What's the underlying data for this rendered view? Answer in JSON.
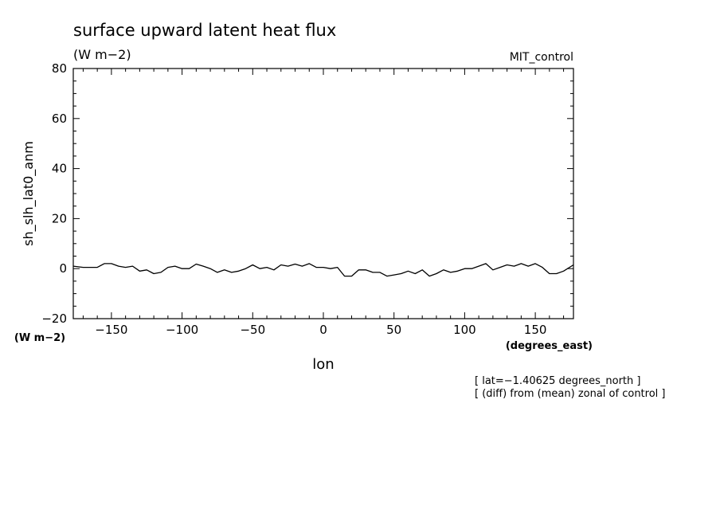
{
  "chart_data": {
    "type": "line",
    "title": "surface upward latent heat flux",
    "title_units": "(W m−2)",
    "run_label": "MIT_control",
    "ylabel": "sh_slh_lat0_anm",
    "ylabel_units": "(W m−2)",
    "xlabel": "lon",
    "xlabel_units": "(degrees_east)",
    "notes": [
      "[ lat=−1.40625 degrees_north ]",
      "[ (diff) from (mean) zonal of control ]"
    ],
    "xlim": [
      -177,
      177
    ],
    "ylim": [
      -20,
      80
    ],
    "xticks": [
      -150,
      -100,
      -50,
      0,
      50,
      100,
      150
    ],
    "xtick_labels": [
      "−150",
      "−100",
      "−50",
      "0",
      "50",
      "100",
      "150"
    ],
    "yticks": [
      -20,
      0,
      20,
      40,
      60,
      80
    ],
    "ytick_labels": [
      "−20",
      "0",
      "20",
      "40",
      "60",
      "80"
    ],
    "x_minor_step": 10,
    "y_minor_step": 5,
    "grid": false,
    "line_color": "#000000",
    "series": [
      {
        "x": [
          -177,
          -170,
          -165,
          -160,
          -155,
          -150,
          -145,
          -140,
          -135,
          -130,
          -125,
          -120,
          -115,
          -110,
          -105,
          -100,
          -95,
          -90,
          -85,
          -80,
          -75,
          -70,
          -65,
          -60,
          -55,
          -50,
          -45,
          -40,
          -35,
          -30,
          -25,
          -20,
          -15,
          -10,
          -5,
          0,
          5,
          10,
          15,
          20,
          25,
          30,
          35,
          40,
          45,
          50,
          55,
          60,
          65,
          70,
          75,
          80,
          85,
          90,
          95,
          100,
          105,
          110,
          115,
          120,
          125,
          130,
          135,
          140,
          145,
          150,
          155,
          160,
          165,
          170,
          177
        ],
        "y": [
          1.0,
          0.5,
          0.5,
          0.5,
          2.0,
          2.0,
          1.0,
          0.5,
          1.0,
          -1.0,
          -0.5,
          -2.0,
          -1.5,
          0.5,
          1.0,
          0.0,
          0.0,
          1.8,
          1.0,
          0.0,
          -1.5,
          -0.5,
          -1.5,
          -1.0,
          0.0,
          1.5,
          0.0,
          0.5,
          -0.5,
          1.5,
          1.0,
          1.8,
          1.0,
          2.0,
          0.5,
          0.5,
          0.0,
          0.5,
          -3.0,
          -3.0,
          -0.5,
          -0.5,
          -1.5,
          -1.5,
          -3.0,
          -2.5,
          -2.0,
          -1.0,
          -2.0,
          -0.5,
          -3.0,
          -2.0,
          -0.5,
          -1.5,
          -1.0,
          0.0,
          0.0,
          1.0,
          2.0,
          -0.5,
          0.5,
          1.5,
          1.0,
          2.0,
          1.0,
          2.0,
          0.5,
          -2.0,
          -2.0,
          -1.0,
          1.5
        ]
      }
    ]
  }
}
